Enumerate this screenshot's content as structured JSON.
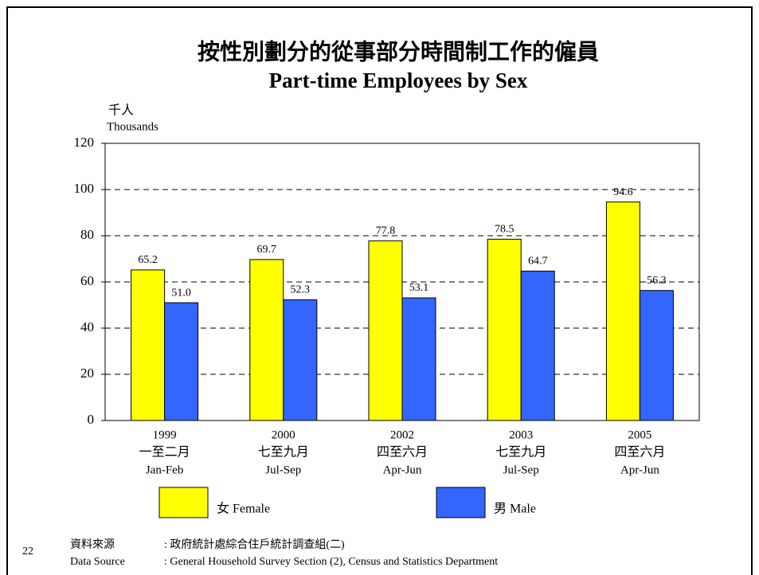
{
  "page_number": "22",
  "source": {
    "zh_label": "資料來源",
    "zh_text": ": 政府統計處綜合住戶統計調查組(二)",
    "en_label": "Data Source",
    "en_text": ": General Household Survey Section (2), Census and Statistics Department"
  },
  "chart_data": {
    "type": "bar",
    "title": "按性別劃分的從事部分時間制工作的僱員",
    "subtitle": "Part-time Employees by Sex",
    "y_label": [
      "千人",
      "Thousands"
    ],
    "categories": [
      [
        "1999",
        "一至二月",
        "Jan-Feb"
      ],
      [
        "2000",
        "七至九月",
        "Jul-Sep"
      ],
      [
        "2002",
        "四至六月",
        "Apr-Jun"
      ],
      [
        "2003",
        "七至九月",
        "Jul-Sep"
      ],
      [
        "2005",
        "四至六月",
        "Apr-Jun"
      ]
    ],
    "series": [
      {
        "name": "女 Female",
        "color": "#ffff00",
        "values": [
          65.2,
          69.7,
          77.8,
          78.5,
          94.6
        ],
        "value_labels": [
          "65.2",
          "69.7",
          "77.8",
          "78.5",
          "94.6"
        ]
      },
      {
        "name": "男 Male",
        "color": "#3366ff",
        "values": [
          51.0,
          52.3,
          53.1,
          64.7,
          56.3
        ],
        "value_labels": [
          "51.0",
          "52.3",
          "53.1",
          "64.7",
          "56.3"
        ]
      }
    ],
    "ylim": [
      0,
      120
    ],
    "yticks": [
      0,
      20,
      40,
      60,
      80,
      100,
      120
    ],
    "grid": true,
    "legend": "bottom"
  }
}
